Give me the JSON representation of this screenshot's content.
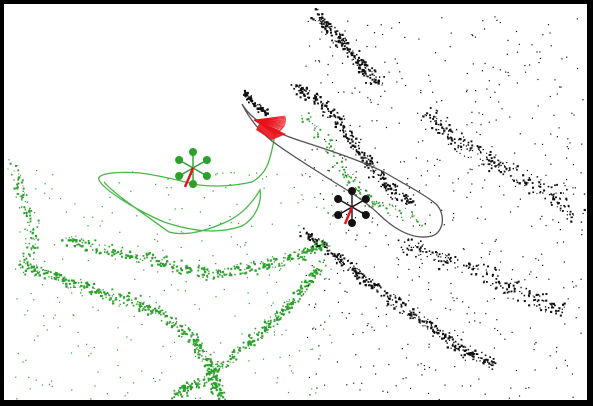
{
  "scene": {
    "background": "#ffffff",
    "border_color": "#000000",
    "map_a": {
      "point_color": "#2ca02c",
      "trajectory_color": "#49b749"
    },
    "map_b": {
      "point_color": "#111111",
      "trajectory_color": "#555555"
    },
    "heading_color": "#e8111a",
    "overlap_color": "#e8111a"
  }
}
